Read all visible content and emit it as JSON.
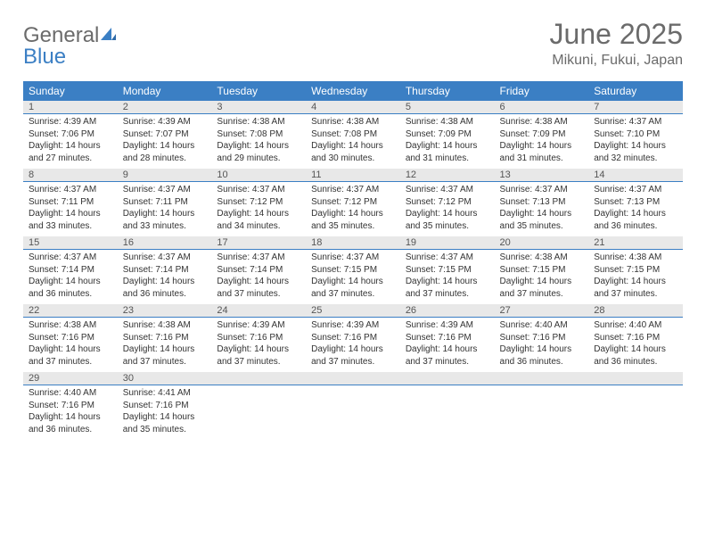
{
  "logo": {
    "text_a": "General",
    "text_b": "Blue"
  },
  "title": "June 2025",
  "location": "Mikuni, Fukui, Japan",
  "colors": {
    "accent": "#3b7fc4",
    "grey_bg": "#e8e8e8",
    "text_grey": "#6b6b6b"
  },
  "weekdays": [
    "Sunday",
    "Monday",
    "Tuesday",
    "Wednesday",
    "Thursday",
    "Friday",
    "Saturday"
  ],
  "weeks": [
    [
      {
        "n": "1",
        "sr": "4:39 AM",
        "ss": "7:06 PM",
        "dl": "14 hours and 27 minutes."
      },
      {
        "n": "2",
        "sr": "4:39 AM",
        "ss": "7:07 PM",
        "dl": "14 hours and 28 minutes."
      },
      {
        "n": "3",
        "sr": "4:38 AM",
        "ss": "7:08 PM",
        "dl": "14 hours and 29 minutes."
      },
      {
        "n": "4",
        "sr": "4:38 AM",
        "ss": "7:08 PM",
        "dl": "14 hours and 30 minutes."
      },
      {
        "n": "5",
        "sr": "4:38 AM",
        "ss": "7:09 PM",
        "dl": "14 hours and 31 minutes."
      },
      {
        "n": "6",
        "sr": "4:38 AM",
        "ss": "7:09 PM",
        "dl": "14 hours and 31 minutes."
      },
      {
        "n": "7",
        "sr": "4:37 AM",
        "ss": "7:10 PM",
        "dl": "14 hours and 32 minutes."
      }
    ],
    [
      {
        "n": "8",
        "sr": "4:37 AM",
        "ss": "7:11 PM",
        "dl": "14 hours and 33 minutes."
      },
      {
        "n": "9",
        "sr": "4:37 AM",
        "ss": "7:11 PM",
        "dl": "14 hours and 33 minutes."
      },
      {
        "n": "10",
        "sr": "4:37 AM",
        "ss": "7:12 PM",
        "dl": "14 hours and 34 minutes."
      },
      {
        "n": "11",
        "sr": "4:37 AM",
        "ss": "7:12 PM",
        "dl": "14 hours and 35 minutes."
      },
      {
        "n": "12",
        "sr": "4:37 AM",
        "ss": "7:12 PM",
        "dl": "14 hours and 35 minutes."
      },
      {
        "n": "13",
        "sr": "4:37 AM",
        "ss": "7:13 PM",
        "dl": "14 hours and 35 minutes."
      },
      {
        "n": "14",
        "sr": "4:37 AM",
        "ss": "7:13 PM",
        "dl": "14 hours and 36 minutes."
      }
    ],
    [
      {
        "n": "15",
        "sr": "4:37 AM",
        "ss": "7:14 PM",
        "dl": "14 hours and 36 minutes."
      },
      {
        "n": "16",
        "sr": "4:37 AM",
        "ss": "7:14 PM",
        "dl": "14 hours and 36 minutes."
      },
      {
        "n": "17",
        "sr": "4:37 AM",
        "ss": "7:14 PM",
        "dl": "14 hours and 37 minutes."
      },
      {
        "n": "18",
        "sr": "4:37 AM",
        "ss": "7:15 PM",
        "dl": "14 hours and 37 minutes."
      },
      {
        "n": "19",
        "sr": "4:37 AM",
        "ss": "7:15 PM",
        "dl": "14 hours and 37 minutes."
      },
      {
        "n": "20",
        "sr": "4:38 AM",
        "ss": "7:15 PM",
        "dl": "14 hours and 37 minutes."
      },
      {
        "n": "21",
        "sr": "4:38 AM",
        "ss": "7:15 PM",
        "dl": "14 hours and 37 minutes."
      }
    ],
    [
      {
        "n": "22",
        "sr": "4:38 AM",
        "ss": "7:16 PM",
        "dl": "14 hours and 37 minutes."
      },
      {
        "n": "23",
        "sr": "4:38 AM",
        "ss": "7:16 PM",
        "dl": "14 hours and 37 minutes."
      },
      {
        "n": "24",
        "sr": "4:39 AM",
        "ss": "7:16 PM",
        "dl": "14 hours and 37 minutes."
      },
      {
        "n": "25",
        "sr": "4:39 AM",
        "ss": "7:16 PM",
        "dl": "14 hours and 37 minutes."
      },
      {
        "n": "26",
        "sr": "4:39 AM",
        "ss": "7:16 PM",
        "dl": "14 hours and 37 minutes."
      },
      {
        "n": "27",
        "sr": "4:40 AM",
        "ss": "7:16 PM",
        "dl": "14 hours and 36 minutes."
      },
      {
        "n": "28",
        "sr": "4:40 AM",
        "ss": "7:16 PM",
        "dl": "14 hours and 36 minutes."
      }
    ],
    [
      {
        "n": "29",
        "sr": "4:40 AM",
        "ss": "7:16 PM",
        "dl": "14 hours and 36 minutes."
      },
      {
        "n": "30",
        "sr": "4:41 AM",
        "ss": "7:16 PM",
        "dl": "14 hours and 35 minutes."
      },
      null,
      null,
      null,
      null,
      null
    ]
  ],
  "labels": {
    "sunrise": "Sunrise:",
    "sunset": "Sunset:",
    "daylight": "Daylight:"
  }
}
